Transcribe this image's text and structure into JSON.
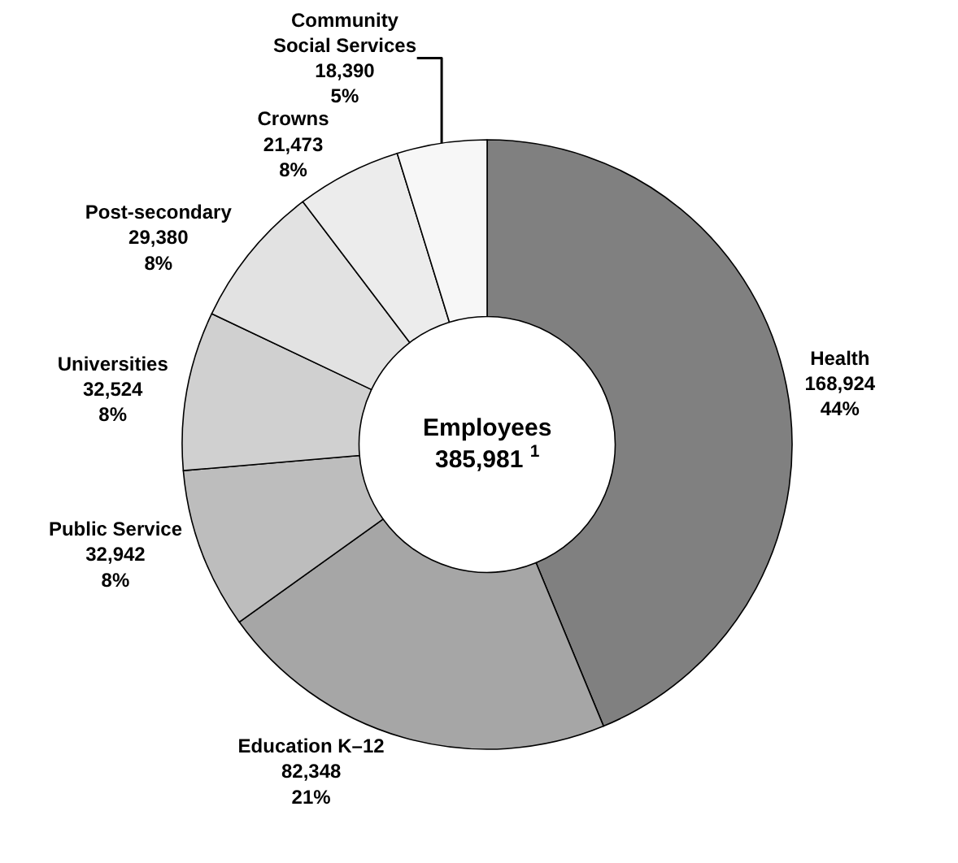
{
  "chart_data": {
    "type": "donut",
    "categories": [
      "Health",
      "Education K–12",
      "Public Service",
      "Universities",
      "Post-secondary",
      "Crowns",
      "Community Social Services"
    ],
    "values": [
      168924,
      82348,
      32942,
      32524,
      29380,
      21473,
      18390
    ],
    "value_labels": [
      "168,924\n44%",
      "82,348\n21%",
      "32,942\n8%",
      "32,524\n8%",
      "29,380\n8%",
      "21,473\n8%",
      "18,390\n5%"
    ],
    "colors": [
      "#808080",
      "#a6a6a6",
      "#bdbdbd",
      "#d0d0d0",
      "#e2e2e2",
      "#ececec",
      "#f7f7f7"
    ],
    "annotations": [
      "Employees\n385,981 $^{1}$"
    ],
    "legend": false
  }
}
